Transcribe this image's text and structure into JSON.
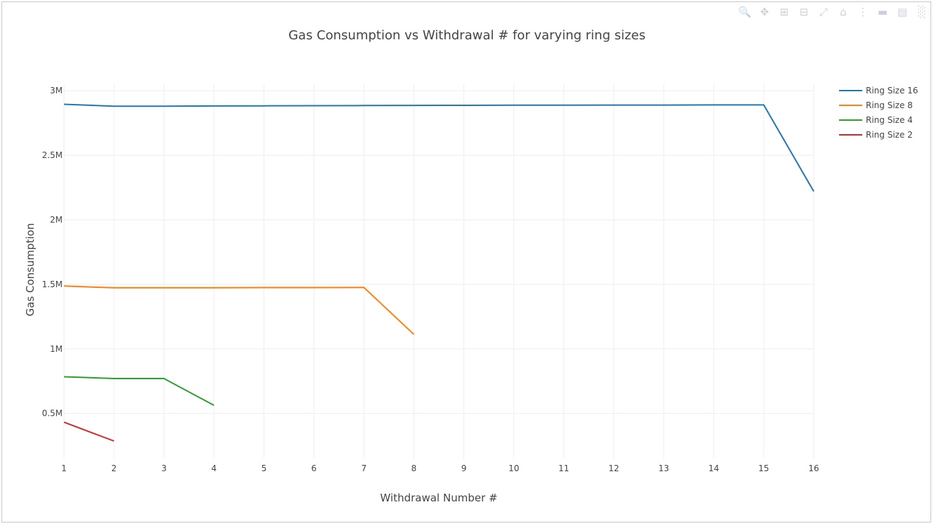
{
  "modebar": {
    "buttons": [
      "zoom-icon",
      "pan-icon",
      "zoom-in-icon",
      "zoom-out-icon",
      "autoscale-icon",
      "reset-axes-icon",
      "spike-lines-icon",
      "hover-closest-icon",
      "hover-compare-icon",
      "plotly-logo-icon"
    ]
  },
  "chart_data": {
    "type": "line",
    "title": "Gas Consumption vs Withdrawal # for varying ring sizes",
    "xlabel": "Withdrawal Number #",
    "ylabel": "Gas Consumption",
    "xlim": [
      1,
      16
    ],
    "ylim": [
      150000,
      3050000
    ],
    "xticks": [
      1,
      2,
      3,
      4,
      5,
      6,
      7,
      8,
      9,
      10,
      11,
      12,
      13,
      14,
      15,
      16
    ],
    "xtick_labels": [
      "1",
      "2",
      "3",
      "4",
      "5",
      "6",
      "7",
      "8",
      "9",
      "10",
      "11",
      "12",
      "13",
      "14",
      "15",
      "16"
    ],
    "yticks": [
      500000,
      1000000,
      1500000,
      2000000,
      2500000,
      3000000
    ],
    "ytick_labels": [
      "0.5M",
      "1M",
      "1.5M",
      "2M",
      "2.5M",
      "3M"
    ],
    "grid": true,
    "legend_position": "top-right",
    "series": [
      {
        "name": "Ring Size 16",
        "color": "#1f77b4",
        "x": [
          1,
          2,
          3,
          4,
          5,
          6,
          7,
          8,
          9,
          10,
          11,
          12,
          13,
          14,
          15,
          16
        ],
        "y": [
          2895000,
          2880000,
          2880000,
          2882000,
          2883000,
          2884000,
          2885000,
          2886000,
          2887000,
          2888000,
          2888000,
          2889000,
          2889000,
          2890000,
          2890000,
          2220000
        ]
      },
      {
        "name": "Ring Size 8",
        "color": "#ff7f0e",
        "x": [
          1,
          2,
          3,
          4,
          5,
          6,
          7,
          8
        ],
        "y": [
          1487000,
          1473000,
          1473000,
          1474000,
          1475000,
          1475000,
          1476000,
          1112000
        ]
      },
      {
        "name": "Ring Size 4",
        "color": "#2ca02c",
        "x": [
          1,
          2,
          3,
          4
        ],
        "y": [
          784000,
          770000,
          770000,
          563000
        ]
      },
      {
        "name": "Ring Size 2",
        "color": "#d62728",
        "x": [
          1,
          2
        ],
        "y": [
          432000,
          286000
        ]
      }
    ]
  }
}
